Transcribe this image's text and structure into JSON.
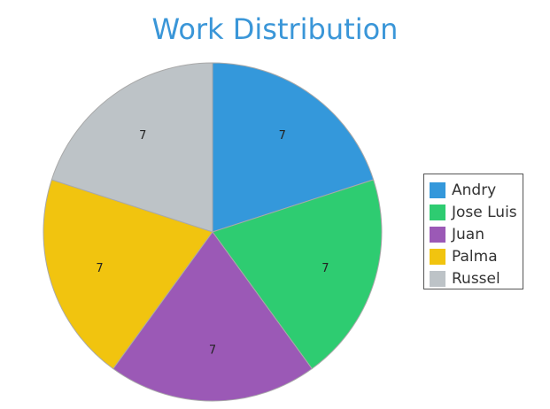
{
  "chart_data": {
    "type": "pie",
    "title": "Work Distribution",
    "categories": [
      "Andry",
      "Jose Luis",
      "Juan",
      "Palma",
      "Russel"
    ],
    "values": [
      7,
      7,
      7,
      7,
      7
    ],
    "colors": [
      "#3498db",
      "#2ecc71",
      "#9b59b6",
      "#f1c40f",
      "#bdc3c7"
    ],
    "legend": "right"
  }
}
